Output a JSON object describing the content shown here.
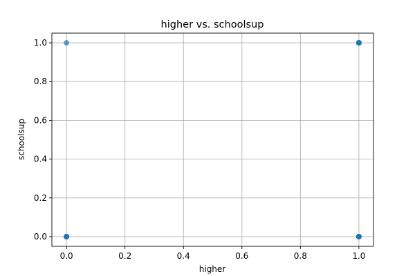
{
  "chart_data": {
    "type": "scatter",
    "title": "higher vs. schoolsup",
    "xlabel": "higher",
    "ylabel": "schoolsup",
    "xlim": [
      -0.05,
      1.05
    ],
    "ylim": [
      -0.05,
      1.05
    ],
    "xticks": [
      0.0,
      0.2,
      0.4,
      0.6,
      0.8,
      1.0
    ],
    "yticks": [
      0.0,
      0.2,
      0.4,
      0.6,
      0.8,
      1.0
    ],
    "xtick_labels": [
      "0.0",
      "0.2",
      "0.4",
      "0.6",
      "0.8",
      "1.0"
    ],
    "ytick_labels": [
      "0.0",
      "0.2",
      "0.4",
      "0.6",
      "0.8",
      "1.0"
    ],
    "grid": true,
    "point_color": "#1f77b4",
    "points": [
      {
        "x": 0,
        "y": 1,
        "weight": 1
      },
      {
        "x": 0,
        "y": 0,
        "weight": 6
      },
      {
        "x": 1,
        "y": 1,
        "weight": 6
      },
      {
        "x": 1,
        "y": 0,
        "weight": 6
      }
    ]
  }
}
